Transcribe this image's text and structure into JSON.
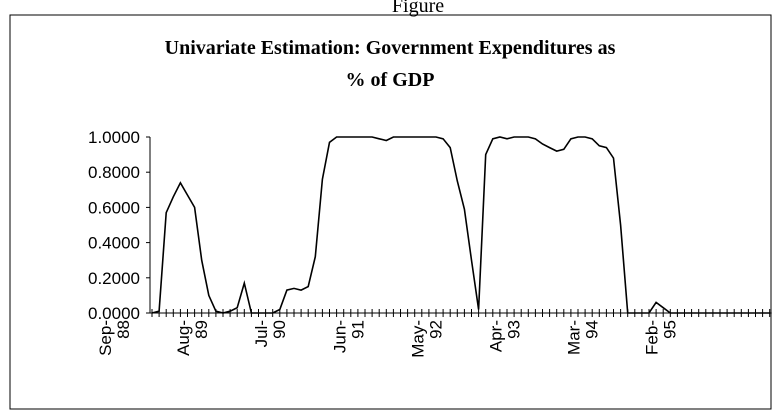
{
  "figure_label": "Figure",
  "chart_data": {
    "type": "line",
    "title": "Univariate Estimation: Government Expenditures as",
    "title_line2": "% of GDP",
    "categories": [
      "Sep-88",
      null,
      null,
      null,
      null,
      null,
      null,
      null,
      null,
      null,
      null,
      "Aug-89",
      null,
      null,
      null,
      null,
      null,
      null,
      null,
      null,
      null,
      null,
      "Jul-90",
      null,
      null,
      null,
      null,
      null,
      null,
      null,
      null,
      null,
      null,
      "Jun-91",
      null,
      null,
      null,
      null,
      null,
      null,
      null,
      null,
      null,
      null,
      "May-92",
      null,
      null,
      null,
      null,
      null,
      null,
      null,
      null,
      null,
      null,
      "Apr-93",
      null,
      null,
      null,
      null,
      null,
      null,
      null,
      null,
      null,
      null,
      "Mar-94",
      null,
      null,
      null,
      null,
      null,
      null,
      null,
      null,
      null,
      null,
      "Feb-95",
      null,
      null,
      null,
      null,
      null,
      null,
      null,
      null,
      null,
      null
    ],
    "values": [
      0,
      0.01,
      0.57,
      0.66,
      0.74,
      0.67,
      0.6,
      0.3,
      0.1,
      0.01,
      0,
      0.01,
      0.03,
      0.17,
      0,
      0,
      0,
      0,
      0.02,
      0.13,
      0.14,
      0.13,
      0.15,
      0.32,
      0.76,
      0.97,
      1,
      1,
      1,
      1,
      1,
      1,
      0.99,
      0.98,
      1,
      1,
      1,
      1,
      1,
      1,
      1,
      0.99,
      0.94,
      0.75,
      0.59,
      0.3,
      0.02,
      0.9,
      0.99,
      1,
      0.99,
      1,
      1,
      1,
      0.99,
      0.96,
      0.94,
      0.92,
      0.93,
      0.99,
      1,
      1,
      0.99,
      0.95,
      0.94,
      0.88,
      0.5,
      0,
      0,
      0,
      0,
      0.06,
      0.03,
      0,
      0,
      0,
      0,
      0,
      0,
      0,
      0,
      0,
      0,
      0,
      0,
      0,
      0,
      0
    ],
    "color": "#000000",
    "ylim": [
      0,
      1
    ],
    "yticks": [
      {
        "value": 0,
        "label": "0.0000"
      },
      {
        "value": 0.2,
        "label": "0.2000"
      },
      {
        "value": 0.4,
        "label": "0.4000"
      },
      {
        "value": 0.6,
        "label": "0.6000"
      },
      {
        "value": 0.8,
        "label": "0.8000"
      },
      {
        "value": 1,
        "label": "1.0000"
      }
    ],
    "grid": false
  }
}
